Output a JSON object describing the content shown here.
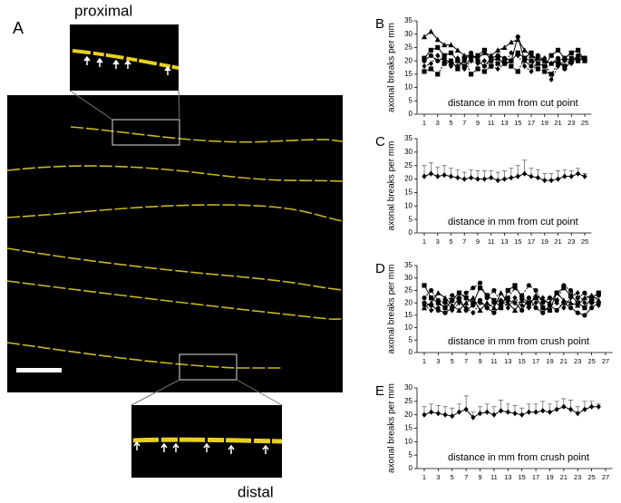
{
  "panel_a": {
    "label": "A",
    "top_label": "proximal",
    "bottom_label": "distal"
  },
  "chart_data": [
    {
      "type": "line",
      "panel": "B",
      "ylabel": "axonal breaks per mm",
      "xlabel": "distance in mm from cut point",
      "x": [
        1,
        2,
        3,
        4,
        5,
        6,
        7,
        8,
        9,
        10,
        11,
        12,
        13,
        14,
        15,
        16,
        17,
        18,
        19,
        20,
        21,
        22,
        23,
        24,
        25
      ],
      "xlim": [
        0,
        26
      ],
      "xticks": [
        1,
        3,
        5,
        7,
        9,
        11,
        13,
        15,
        17,
        19,
        21,
        23,
        25
      ],
      "ylim": [
        0,
        35
      ],
      "yticks": [
        0,
        5,
        10,
        15,
        20,
        25,
        30,
        35
      ],
      "color": "#000000",
      "series": [
        {
          "marker": "triangle",
          "dash": false,
          "values": [
            29,
            31,
            28,
            26,
            26,
            24,
            22,
            22,
            21,
            23,
            22,
            24,
            25,
            27,
            28,
            24,
            22,
            21,
            20,
            19,
            20,
            21,
            20,
            21,
            21
          ]
        },
        {
          "marker": "square",
          "dash": false,
          "values": [
            21,
            24,
            25,
            22,
            23,
            20,
            18,
            21,
            22,
            24,
            20,
            21,
            19,
            20,
            23,
            21,
            23,
            19,
            18,
            22,
            24,
            21,
            23,
            24,
            20
          ]
        },
        {
          "marker": "circle",
          "dash": false,
          "values": [
            20,
            22,
            20,
            21,
            19,
            18,
            20,
            23,
            20,
            18,
            21,
            22,
            21,
            20,
            29,
            20,
            18,
            22,
            20,
            19,
            21,
            17,
            20,
            22,
            21
          ]
        },
        {
          "marker": "diamond",
          "dash": true,
          "values": [
            18,
            19,
            22,
            20,
            18,
            21,
            17,
            20,
            19,
            20,
            18,
            17,
            19,
            23,
            22,
            18,
            16,
            19,
            21,
            13,
            18,
            20,
            19,
            21,
            21
          ]
        },
        {
          "marker": "square",
          "dash": true,
          "values": [
            16,
            17,
            15,
            19,
            20,
            17,
            21,
            15,
            17,
            16,
            18,
            19,
            20,
            18,
            16,
            21,
            20,
            17,
            16,
            15,
            19,
            18,
            21,
            20,
            21
          ]
        }
      ]
    },
    {
      "type": "line",
      "panel": "C",
      "ylabel": "axonal breaks per mm",
      "xlabel": "distance in mm from cut point",
      "x": [
        1,
        2,
        3,
        4,
        5,
        6,
        7,
        8,
        9,
        10,
        11,
        12,
        13,
        14,
        15,
        16,
        17,
        18,
        19,
        20,
        21,
        22,
        23,
        24,
        25
      ],
      "xlim": [
        0,
        26
      ],
      "xticks": [
        1,
        3,
        5,
        7,
        9,
        11,
        13,
        15,
        17,
        19,
        21,
        23,
        25
      ],
      "ylim": [
        0,
        35
      ],
      "yticks": [
        0,
        5,
        10,
        15,
        20,
        25,
        30,
        35
      ],
      "color": "#000000",
      "series": [
        {
          "marker": "diamond",
          "dash": false,
          "values": [
            21,
            22,
            21,
            21.5,
            21,
            20.5,
            20,
            20.5,
            20,
            20,
            20.5,
            19.5,
            20,
            20.5,
            21,
            22,
            21,
            20.5,
            19.5,
            19.5,
            20,
            21,
            21,
            22,
            21
          ],
          "errors": [
            4,
            4,
            3.5,
            3.5,
            3,
            3,
            2.5,
            3,
            3,
            3,
            2.5,
            3,
            3,
            3.5,
            4,
            5,
            3,
            3,
            2.5,
            2.5,
            3,
            2.5,
            2,
            2,
            1
          ]
        }
      ]
    },
    {
      "type": "line",
      "panel": "D",
      "ylabel": "axonal breaks per mm",
      "xlabel": "distance in mm from crush point",
      "x": [
        1,
        2,
        3,
        4,
        5,
        6,
        7,
        8,
        9,
        10,
        11,
        12,
        13,
        14,
        15,
        16,
        17,
        18,
        19,
        20,
        21,
        22,
        23,
        24,
        25,
        26
      ],
      "xlim": [
        0,
        28
      ],
      "xticks": [
        1,
        3,
        5,
        7,
        9,
        11,
        13,
        15,
        17,
        19,
        21,
        23,
        25,
        27
      ],
      "ylim": [
        0,
        35
      ],
      "yticks": [
        0,
        5,
        10,
        15,
        20,
        25,
        30,
        35
      ],
      "color": "#000000",
      "series": [
        {
          "marker": "square",
          "dash": false,
          "values": [
            27,
            22,
            20,
            18,
            21,
            24,
            22,
            20,
            26,
            23,
            21,
            18,
            25,
            27,
            22,
            20,
            22,
            18,
            17,
            24,
            26,
            23,
            20,
            18,
            22,
            24
          ]
        },
        {
          "marker": "circle",
          "dash": true,
          "values": [
            22,
            25,
            21,
            20,
            23,
            21,
            24,
            26,
            28,
            22,
            25,
            20,
            22,
            26,
            23,
            27,
            25,
            20,
            22,
            21,
            27,
            25,
            22,
            24,
            20,
            23
          ]
        },
        {
          "marker": "triangle",
          "dash": false,
          "values": [
            18,
            20,
            24,
            22,
            19,
            17,
            20,
            22,
            17,
            20,
            18,
            24,
            20,
            17,
            21,
            19,
            23,
            21,
            20,
            24,
            21,
            20,
            19,
            22,
            23,
            21
          ]
        },
        {
          "marker": "diamond",
          "dash": true,
          "values": [
            19,
            17,
            18,
            21,
            17,
            20,
            18,
            16,
            20,
            18,
            20,
            21,
            18,
            22,
            19,
            18,
            20,
            22,
            19,
            20,
            18,
            22,
            24,
            20,
            21,
            19
          ]
        },
        {
          "marker": "circle",
          "dash": false,
          "values": [
            20,
            19,
            17,
            16,
            18,
            22,
            17,
            19,
            21,
            18,
            16,
            19,
            21,
            20,
            17,
            22,
            18,
            16,
            19,
            17,
            20,
            18,
            16,
            15,
            18,
            20
          ]
        }
      ]
    },
    {
      "type": "line",
      "panel": "E",
      "ylabel": "axonal breaks per mm",
      "xlabel": "distance in mm from crush point",
      "x": [
        1,
        2,
        3,
        4,
        5,
        6,
        7,
        8,
        9,
        10,
        11,
        12,
        13,
        14,
        15,
        16,
        17,
        18,
        19,
        20,
        21,
        22,
        23,
        24,
        25,
        26
      ],
      "xlim": [
        0,
        28
      ],
      "xticks": [
        1,
        3,
        5,
        7,
        9,
        11,
        13,
        15,
        17,
        19,
        21,
        23,
        25,
        27
      ],
      "ylim": [
        0,
        30
      ],
      "yticks": [
        0,
        5,
        10,
        15,
        20,
        25,
        30
      ],
      "color": "#000000",
      "series": [
        {
          "marker": "diamond",
          "dash": false,
          "values": [
            20,
            21,
            20.5,
            20,
            19.5,
            21,
            22,
            19,
            20.5,
            21,
            20,
            21.5,
            21,
            20.5,
            20,
            21,
            21,
            21.5,
            21,
            22,
            23,
            22,
            20.5,
            22,
            23,
            23
          ],
          "errors": [
            3,
            3,
            3,
            3,
            3,
            3,
            5,
            2,
            2.5,
            3,
            3,
            4,
            3,
            3,
            2.5,
            3,
            3,
            3.5,
            3,
            3,
            3,
            3.5,
            2.5,
            3,
            2,
            1
          ]
        }
      ]
    }
  ]
}
